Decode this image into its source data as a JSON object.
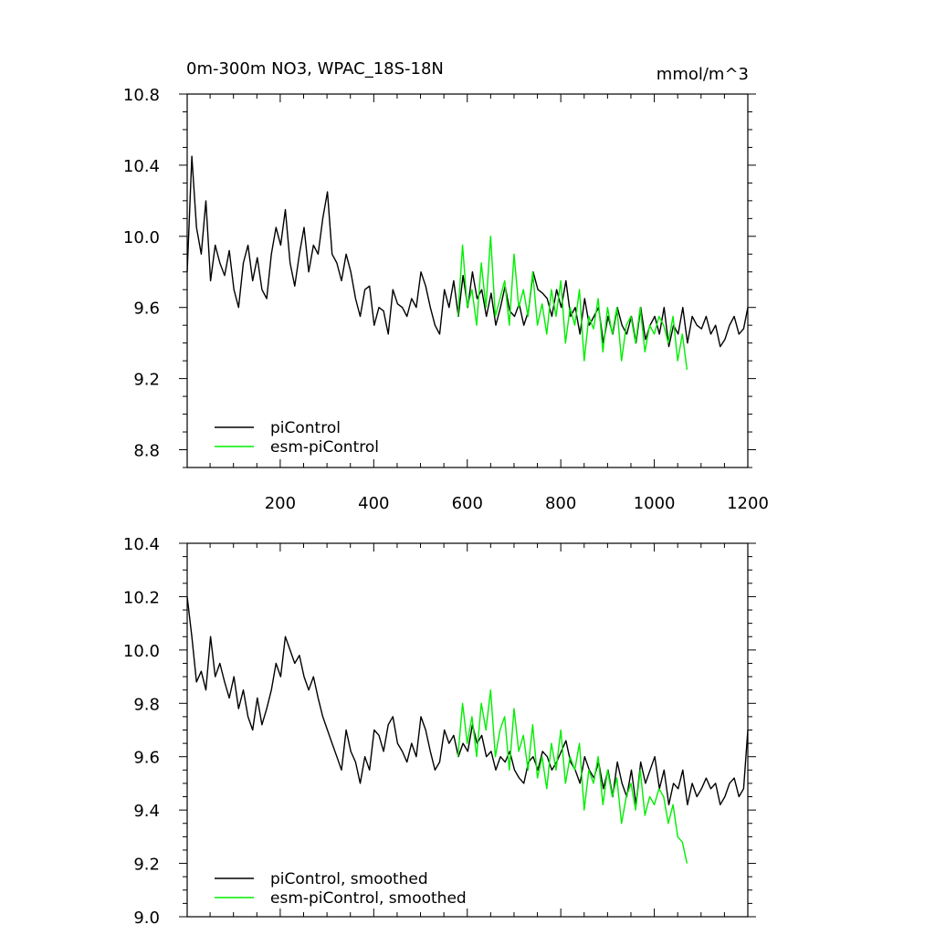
{
  "colors": {
    "picontrol": "#000000",
    "esm_picontrol": "#00ee00",
    "axis": "#000000"
  },
  "chart_data": [
    {
      "type": "line",
      "title": "0m-300m NO3, WPAC_18S-18N",
      "units_label": "mmol/m^3",
      "xlabel": "",
      "ylabel": "",
      "xlim": [
        1,
        1200
      ],
      "ylim": [
        8.7,
        10.8
      ],
      "x_ticks": [
        200,
        400,
        600,
        800,
        1000,
        1200
      ],
      "y_ticks": [
        8.8,
        9.2,
        9.6,
        10.0,
        10.4,
        10.8
      ],
      "y_tick_labels": [
        "8.8",
        "9.2",
        "9.6",
        "10.0",
        "10.4",
        "10.8"
      ],
      "legend_position": "bottom-left",
      "series": [
        {
          "name": "piControl",
          "color": "#000000",
          "x_start": 1,
          "x_step": 10,
          "values": [
            9.8,
            10.45,
            10.05,
            9.9,
            10.2,
            9.75,
            9.95,
            9.85,
            9.78,
            9.92,
            9.7,
            9.6,
            9.85,
            9.95,
            9.75,
            9.88,
            9.7,
            9.65,
            9.9,
            10.05,
            9.95,
            10.15,
            9.85,
            9.72,
            9.9,
            10.05,
            9.8,
            9.95,
            9.9,
            10.1,
            10.25,
            9.9,
            9.85,
            9.75,
            9.9,
            9.8,
            9.65,
            9.55,
            9.7,
            9.72,
            9.5,
            9.6,
            9.58,
            9.45,
            9.7,
            9.62,
            9.6,
            9.55,
            9.65,
            9.6,
            9.8,
            9.72,
            9.6,
            9.5,
            9.45,
            9.7,
            9.6,
            9.75,
            9.55,
            9.78,
            9.6,
            9.8,
            9.65,
            9.7,
            9.55,
            9.68,
            9.5,
            9.6,
            9.72,
            9.58,
            9.55,
            9.62,
            9.5,
            9.58,
            9.8,
            9.7,
            9.68,
            9.65,
            9.55,
            9.7,
            9.6,
            9.75,
            9.55,
            9.6,
            9.45,
            9.65,
            9.5,
            9.55,
            9.6,
            9.4,
            9.55,
            9.45,
            9.6,
            9.5,
            9.45,
            9.55,
            9.4,
            9.6,
            9.42,
            9.5,
            9.55,
            9.45,
            9.6,
            9.38,
            9.5,
            9.45,
            9.6,
            9.4,
            9.55,
            9.5,
            9.48,
            9.55,
            9.45,
            9.5,
            9.38,
            9.42,
            9.5,
            9.55,
            9.45,
            9.48,
            9.6
          ]
        },
        {
          "name": "esm-piControl",
          "color": "#00ee00",
          "x_start": 580,
          "x_step": 10,
          "values": [
            9.55,
            9.95,
            9.6,
            9.7,
            9.5,
            9.85,
            9.6,
            10.0,
            9.55,
            9.65,
            9.75,
            9.5,
            9.9,
            9.6,
            9.7,
            9.55,
            9.8,
            9.5,
            9.62,
            9.45,
            9.7,
            9.55,
            9.75,
            9.4,
            9.6,
            9.5,
            9.7,
            9.3,
            9.55,
            9.48,
            9.65,
            9.35,
            9.6,
            9.45,
            9.6,
            9.3,
            9.5,
            9.55,
            9.4,
            9.6,
            9.35,
            9.5,
            9.45,
            9.55,
            9.5,
            9.4,
            9.55,
            9.3,
            9.45,
            9.25
          ]
        }
      ]
    },
    {
      "type": "line",
      "title": "",
      "xlabel": "",
      "ylabel": "",
      "xlim": [
        1,
        1200
      ],
      "ylim": [
        9.0,
        10.4
      ],
      "x_ticks": [
        200,
        400,
        600,
        800,
        1000,
        1200
      ],
      "y_ticks": [
        9.0,
        9.2,
        9.4,
        9.6,
        9.8,
        10.0,
        10.2,
        10.4
      ],
      "y_tick_labels": [
        "9.0",
        "9.2",
        "9.4",
        "9.6",
        "9.8",
        "10.0",
        "10.2",
        "10.4"
      ],
      "legend_position": "bottom-left",
      "series": [
        {
          "name": "piControl, smoothed",
          "color": "#000000",
          "x_start": 1,
          "x_step": 10,
          "values": [
            10.2,
            10.05,
            9.88,
            9.92,
            9.85,
            10.05,
            9.9,
            9.95,
            9.88,
            9.82,
            9.9,
            9.78,
            9.85,
            9.75,
            9.7,
            9.82,
            9.72,
            9.78,
            9.85,
            9.95,
            9.9,
            10.05,
            10.0,
            9.95,
            9.98,
            9.9,
            9.85,
            9.9,
            9.82,
            9.75,
            9.7,
            9.65,
            9.6,
            9.55,
            9.7,
            9.62,
            9.58,
            9.5,
            9.6,
            9.55,
            9.7,
            9.68,
            9.62,
            9.72,
            9.75,
            9.65,
            9.62,
            9.58,
            9.65,
            9.6,
            9.75,
            9.7,
            9.62,
            9.55,
            9.58,
            9.7,
            9.65,
            9.68,
            9.6,
            9.65,
            9.62,
            9.72,
            9.65,
            9.68,
            9.6,
            9.62,
            9.55,
            9.6,
            9.58,
            9.62,
            9.55,
            9.52,
            9.5,
            9.58,
            9.6,
            9.55,
            9.62,
            9.6,
            9.55,
            9.58,
            9.62,
            9.66,
            9.58,
            9.55,
            9.5,
            9.6,
            9.55,
            9.52,
            9.58,
            9.48,
            9.55,
            9.45,
            9.58,
            9.5,
            9.45,
            9.55,
            9.42,
            9.58,
            9.5,
            9.55,
            9.6,
            9.48,
            9.55,
            9.42,
            9.5,
            9.48,
            9.55,
            9.42,
            9.5,
            9.45,
            9.48,
            9.52,
            9.48,
            9.5,
            9.42,
            9.45,
            9.5,
            9.52,
            9.45,
            9.48,
            9.7
          ]
        },
        {
          "name": "esm-piControl, smoothed",
          "color": "#00ee00",
          "x_start": 580,
          "x_step": 10,
          "values": [
            9.6,
            9.8,
            9.65,
            9.75,
            9.6,
            9.8,
            9.7,
            9.85,
            9.6,
            9.7,
            9.75,
            9.55,
            9.78,
            9.62,
            9.68,
            9.55,
            9.72,
            9.52,
            9.6,
            9.48,
            9.65,
            9.55,
            9.7,
            9.5,
            9.6,
            9.55,
            9.65,
            9.4,
            9.55,
            9.5,
            9.6,
            9.42,
            9.55,
            9.45,
            9.52,
            9.35,
            9.45,
            9.5,
            9.4,
            9.55,
            9.38,
            9.45,
            9.42,
            9.48,
            9.45,
            9.35,
            9.42,
            9.3,
            9.28,
            9.2
          ]
        }
      ]
    }
  ]
}
